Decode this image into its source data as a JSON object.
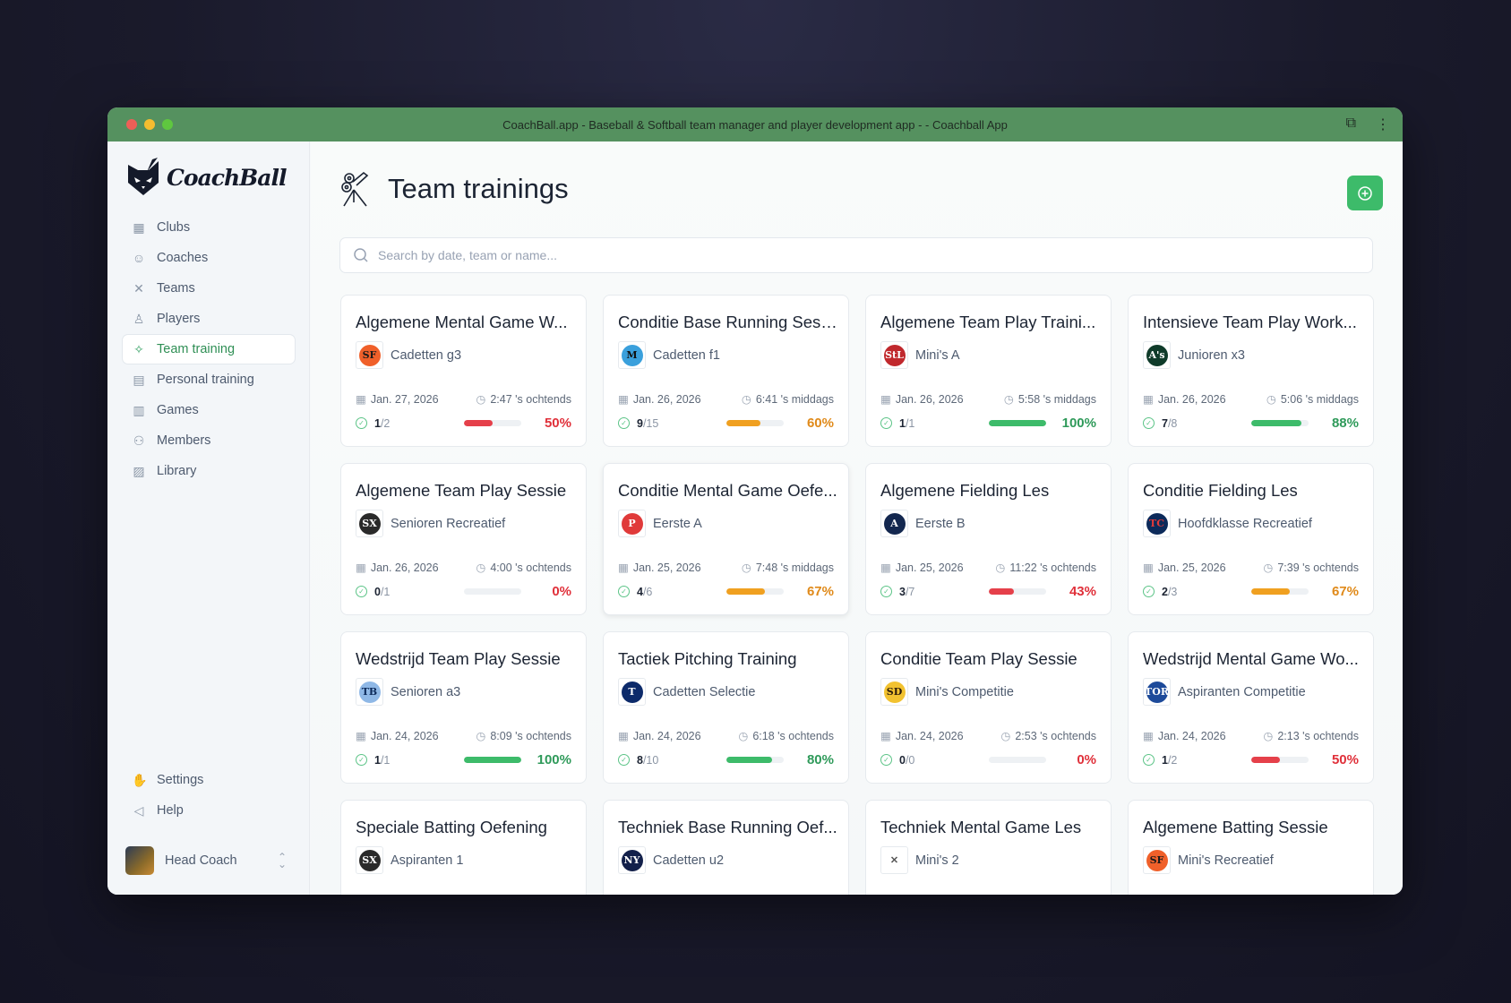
{
  "window": {
    "title": "CoachBall.app - Baseball & Softball team manager and player development app - - Coachball App"
  },
  "brand": {
    "name": "CoachBall"
  },
  "sidebar": {
    "items": [
      {
        "label": "Clubs",
        "icon": "building-icon"
      },
      {
        "label": "Coaches",
        "icon": "coach-icon"
      },
      {
        "label": "Teams",
        "icon": "crossed-bats-icon"
      },
      {
        "label": "Players",
        "icon": "player-icon"
      },
      {
        "label": "Team training",
        "icon": "pitching-machine-icon",
        "active": true
      },
      {
        "label": "Personal training",
        "icon": "clipboard-icon"
      },
      {
        "label": "Games",
        "icon": "scoreboard-icon"
      },
      {
        "label": "Members",
        "icon": "members-icon"
      },
      {
        "label": "Library",
        "icon": "image-icon"
      }
    ],
    "bottom": [
      {
        "label": "Settings",
        "icon": "glove-icon"
      },
      {
        "label": "Help",
        "icon": "megaphone-icon"
      }
    ],
    "user": {
      "name": "Head Coach"
    }
  },
  "header": {
    "title": "Team trainings"
  },
  "search": {
    "placeholder": "Search by date, team or name..."
  },
  "colors": {
    "accent": "#3dbb6a",
    "titlebar": "#55915f",
    "good": "#3dbb6a",
    "warn": "#f0a020",
    "bad": "#e5404a"
  },
  "trainings": [
    {
      "title": "Algemene Mental Game W...",
      "team": "Cadetten g3",
      "logo": "SF",
      "logo_bg": "#f0602a",
      "logo_fg": "#1a1a1a",
      "date": "Jan. 27, 2026",
      "time": "2:47 's ochtends",
      "done": "1",
      "total": "/2",
      "percent": 50,
      "pct_label": "50%",
      "status": "bad"
    },
    {
      "title": "Conditie Base Running Sess...",
      "team": "Cadetten f1",
      "logo": "M",
      "logo_bg": "#3aa0dc",
      "logo_fg": "#111",
      "date": "Jan. 26, 2026",
      "time": "6:41 's middags",
      "done": "9",
      "total": "/15",
      "percent": 60,
      "pct_label": "60%",
      "status": "warn"
    },
    {
      "title": "Algemene Team Play Traini...",
      "team": "Mini's A",
      "logo": "StL",
      "logo_bg": "#c0282d",
      "logo_fg": "#fff",
      "date": "Jan. 26, 2026",
      "time": "5:58 's middags",
      "done": "1",
      "total": "/1",
      "percent": 100,
      "pct_label": "100%",
      "status": "good"
    },
    {
      "title": "Intensieve Team Play Work...",
      "team": "Junioren x3",
      "logo": "A's",
      "logo_bg": "#0f3b2a",
      "logo_fg": "#fff",
      "date": "Jan. 26, 2026",
      "time": "5:06 's middags",
      "done": "7",
      "total": "/8",
      "percent": 88,
      "pct_label": "88%",
      "status": "good"
    },
    {
      "title": "Algemene Team Play Sessie",
      "team": "Senioren Recreatief",
      "logo": "SX",
      "logo_bg": "#2a2a2a",
      "logo_fg": "#fff",
      "date": "Jan. 26, 2026",
      "time": "4:00 's ochtends",
      "done": "0",
      "total": "/1",
      "percent": 0,
      "pct_label": "0%",
      "status": "bad"
    },
    {
      "title": "Conditie Mental Game Oefe...",
      "team": "Eerste A",
      "logo": "P",
      "logo_bg": "#e03a3a",
      "logo_fg": "#fff",
      "date": "Jan. 25, 2026",
      "time": "7:48 's middags",
      "done": "4",
      "total": "/6",
      "percent": 67,
      "pct_label": "67%",
      "status": "warn"
    },
    {
      "title": "Algemene Fielding Les",
      "team": "Eerste B",
      "logo": "A",
      "logo_bg": "#13274f",
      "logo_fg": "#fff",
      "date": "Jan. 25, 2026",
      "time": "11:22 's ochtends",
      "done": "3",
      "total": "/7",
      "percent": 43,
      "pct_label": "43%",
      "status": "bad"
    },
    {
      "title": "Conditie Fielding Les",
      "team": "Hoofdklasse Recreatief",
      "logo": "TC",
      "logo_bg": "#0c2a5a",
      "logo_fg": "#e03a3a",
      "date": "Jan. 25, 2026",
      "time": "7:39 's ochtends",
      "done": "2",
      "total": "/3",
      "percent": 67,
      "pct_label": "67%",
      "status": "warn"
    },
    {
      "title": "Wedstrijd Team Play Sessie",
      "team": "Senioren a3",
      "logo": "TB",
      "logo_bg": "#8fb8e6",
      "logo_fg": "#0c2a5a",
      "date": "Jan. 24, 2026",
      "time": "8:09 's ochtends",
      "done": "1",
      "total": "/1",
      "percent": 100,
      "pct_label": "100%",
      "status": "good"
    },
    {
      "title": "Tactiek Pitching Training",
      "team": "Cadetten Selectie",
      "logo": "T",
      "logo_bg": "#0c2a6a",
      "logo_fg": "#fff",
      "date": "Jan. 24, 2026",
      "time": "6:18 's ochtends",
      "done": "8",
      "total": "/10",
      "percent": 80,
      "pct_label": "80%",
      "status": "good"
    },
    {
      "title": "Conditie Team Play Sessie",
      "team": "Mini's Competitie",
      "logo": "SD",
      "logo_bg": "#f2c230",
      "logo_fg": "#2a1a0a",
      "date": "Jan. 24, 2026",
      "time": "2:53 's ochtends",
      "done": "0",
      "total": "/0",
      "percent": 0,
      "pct_label": "0%",
      "status": "bad"
    },
    {
      "title": "Wedstrijd Mental Game Wo...",
      "team": "Aspiranten Competitie",
      "logo": "TOR",
      "logo_bg": "#1d4a9a",
      "logo_fg": "#fff",
      "date": "Jan. 24, 2026",
      "time": "2:13 's ochtends",
      "done": "1",
      "total": "/2",
      "percent": 50,
      "pct_label": "50%",
      "status": "bad"
    },
    {
      "title": "Speciale Batting Oefening",
      "team": "Aspiranten 1",
      "logo": "SX",
      "logo_bg": "#2a2a2a",
      "logo_fg": "#fff"
    },
    {
      "title": "Techniek Base Running Oef...",
      "team": "Cadetten u2",
      "logo": "NY",
      "logo_bg": "#13204a",
      "logo_fg": "#fff"
    },
    {
      "title": "Techniek Mental Game Les",
      "team": "Mini's 2",
      "logo": "✕",
      "logo_bg": "#ffffff",
      "logo_fg": "#555"
    },
    {
      "title": "Algemene Batting Sessie",
      "team": "Mini's Recreatief",
      "logo": "SF",
      "logo_bg": "#f0602a",
      "logo_fg": "#1a1a1a"
    }
  ]
}
